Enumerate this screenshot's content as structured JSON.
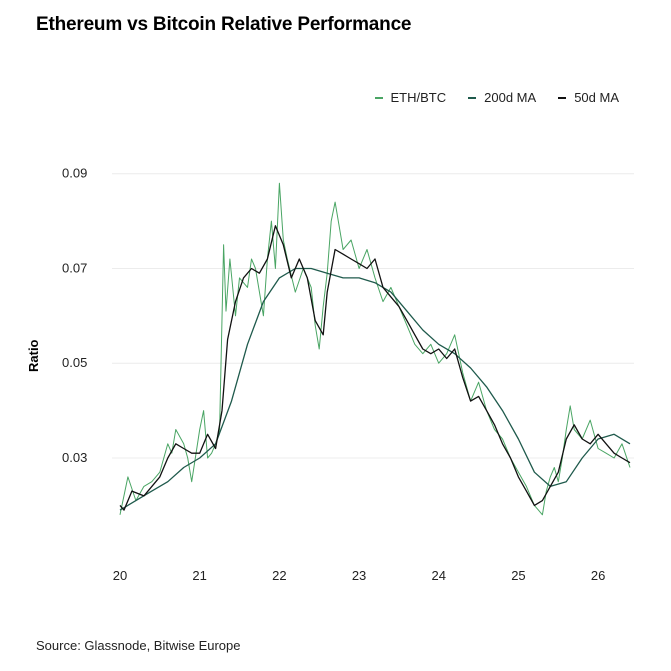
{
  "title": "Ethereum vs Bitcoin Relative Performance",
  "source": "Source: Glassnode, Bitwise Europe",
  "colors": {
    "eth_btc": "#4aa564",
    "ma200": "#1f5a4c",
    "ma50": "#111111",
    "grid": "#ececec"
  },
  "chart_data": {
    "type": "line",
    "title": "Ethereum vs Bitcoin Relative Performance",
    "xlabel": "",
    "ylabel": "Ratio",
    "xlim": [
      2019.9,
      2026.45
    ],
    "ylim": [
      0.011,
      0.095
    ],
    "yticks": [
      0.03,
      0.05,
      0.07,
      0.09
    ],
    "ytick_labels": [
      "0.03",
      "0.05",
      "0.07",
      "0.09"
    ],
    "xticks": [
      20,
      21,
      22,
      23,
      24,
      25,
      26
    ],
    "xtick_labels": [
      "20",
      "21",
      "22",
      "23",
      "24",
      "25",
      "26"
    ],
    "grid": true,
    "legend_position": "top-right",
    "series": [
      {
        "name": "ETH/BTC",
        "color": "#4aa564",
        "x": [
          20.0,
          20.1,
          20.2,
          20.3,
          20.4,
          20.5,
          20.6,
          20.65,
          20.7,
          20.8,
          20.85,
          20.9,
          21.0,
          21.05,
          21.1,
          21.15,
          21.2,
          21.25,
          21.3,
          21.33,
          21.38,
          21.45,
          21.5,
          21.6,
          21.65,
          21.7,
          21.8,
          21.85,
          21.9,
          21.95,
          22.0,
          22.05,
          22.1,
          22.2,
          22.3,
          22.4,
          22.45,
          22.5,
          22.55,
          22.6,
          22.65,
          22.7,
          22.8,
          22.9,
          23.0,
          23.1,
          23.2,
          23.3,
          23.4,
          23.5,
          23.6,
          23.7,
          23.8,
          23.9,
          24.0,
          24.1,
          24.2,
          24.3,
          24.4,
          24.5,
          24.6,
          24.7,
          24.8,
          24.9,
          25.0,
          25.1,
          25.2,
          25.25,
          25.3,
          25.35,
          25.4,
          25.45,
          25.5,
          25.55,
          25.6,
          25.65,
          25.7,
          25.8,
          25.9,
          26.0,
          26.1,
          26.2,
          26.3,
          26.4
        ],
        "values": [
          0.018,
          0.026,
          0.021,
          0.024,
          0.025,
          0.027,
          0.033,
          0.031,
          0.036,
          0.033,
          0.03,
          0.025,
          0.036,
          0.04,
          0.03,
          0.031,
          0.033,
          0.036,
          0.075,
          0.061,
          0.072,
          0.06,
          0.068,
          0.066,
          0.072,
          0.07,
          0.06,
          0.072,
          0.08,
          0.07,
          0.088,
          0.076,
          0.072,
          0.065,
          0.07,
          0.066,
          0.058,
          0.053,
          0.062,
          0.069,
          0.08,
          0.084,
          0.074,
          0.076,
          0.07,
          0.074,
          0.068,
          0.063,
          0.066,
          0.062,
          0.058,
          0.054,
          0.052,
          0.054,
          0.05,
          0.052,
          0.056,
          0.048,
          0.042,
          0.046,
          0.04,
          0.036,
          0.034,
          0.03,
          0.027,
          0.024,
          0.02,
          0.019,
          0.018,
          0.023,
          0.026,
          0.028,
          0.025,
          0.03,
          0.036,
          0.041,
          0.036,
          0.034,
          0.038,
          0.032,
          0.031,
          0.03,
          0.033,
          0.028
        ]
      },
      {
        "name": "200d MA",
        "color": "#1f5a4c",
        "x": [
          20.0,
          20.2,
          20.4,
          20.6,
          20.8,
          21.0,
          21.2,
          21.4,
          21.6,
          21.8,
          22.0,
          22.2,
          22.4,
          22.6,
          22.8,
          23.0,
          23.2,
          23.4,
          23.6,
          23.8,
          24.0,
          24.2,
          24.4,
          24.6,
          24.8,
          25.0,
          25.2,
          25.4,
          25.6,
          25.8,
          26.0,
          26.2,
          26.4
        ],
        "values": [
          0.019,
          0.021,
          0.023,
          0.025,
          0.028,
          0.03,
          0.033,
          0.042,
          0.054,
          0.063,
          0.068,
          0.07,
          0.07,
          0.069,
          0.068,
          0.068,
          0.067,
          0.065,
          0.061,
          0.057,
          0.054,
          0.052,
          0.049,
          0.045,
          0.04,
          0.034,
          0.027,
          0.024,
          0.025,
          0.03,
          0.034,
          0.035,
          0.033
        ]
      },
      {
        "name": "50d MA",
        "color": "#111111",
        "x": [
          20.0,
          20.05,
          20.15,
          20.3,
          20.5,
          20.6,
          20.7,
          20.8,
          20.9,
          21.0,
          21.1,
          21.2,
          21.28,
          21.35,
          21.45,
          21.55,
          21.65,
          21.75,
          21.85,
          21.95,
          22.05,
          22.15,
          22.25,
          22.35,
          22.45,
          22.55,
          22.6,
          22.7,
          22.8,
          22.9,
          23.0,
          23.1,
          23.2,
          23.3,
          23.4,
          23.5,
          23.6,
          23.7,
          23.8,
          23.9,
          24.0,
          24.1,
          24.2,
          24.3,
          24.4,
          24.5,
          24.6,
          24.7,
          24.8,
          24.9,
          25.0,
          25.1,
          25.2,
          25.3,
          25.4,
          25.5,
          25.6,
          25.7,
          25.8,
          25.9,
          26.0,
          26.1,
          26.2,
          26.3,
          26.4
        ],
        "values": [
          0.02,
          0.019,
          0.023,
          0.022,
          0.026,
          0.03,
          0.033,
          0.032,
          0.031,
          0.031,
          0.035,
          0.032,
          0.04,
          0.055,
          0.063,
          0.068,
          0.07,
          0.069,
          0.072,
          0.079,
          0.075,
          0.068,
          0.072,
          0.068,
          0.059,
          0.056,
          0.065,
          0.074,
          0.073,
          0.072,
          0.071,
          0.07,
          0.072,
          0.066,
          0.064,
          0.062,
          0.059,
          0.056,
          0.053,
          0.052,
          0.053,
          0.051,
          0.053,
          0.047,
          0.042,
          0.043,
          0.04,
          0.037,
          0.033,
          0.03,
          0.026,
          0.023,
          0.02,
          0.021,
          0.024,
          0.027,
          0.034,
          0.037,
          0.034,
          0.033,
          0.035,
          0.033,
          0.031,
          0.03,
          0.029
        ]
      }
    ]
  }
}
